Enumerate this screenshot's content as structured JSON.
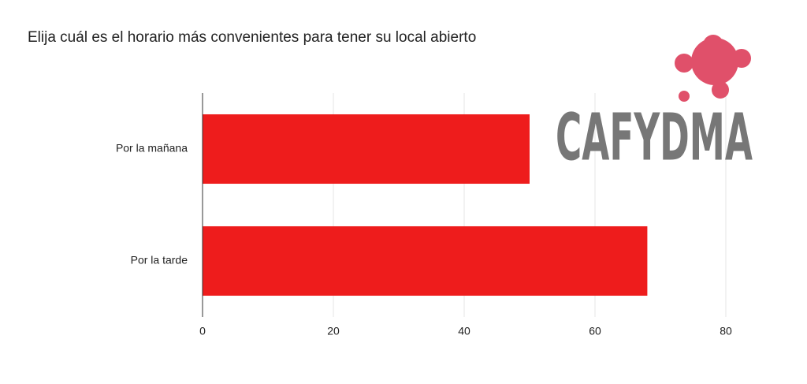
{
  "chart_data": {
    "type": "bar",
    "orientation": "horizontal",
    "title": "Elija cuál es el horario más convenientes para tener su local abierto",
    "categories": [
      "Por la mañana",
      "Por la tarde"
    ],
    "values": [
      50,
      68
    ],
    "color": "#ee1c1c",
    "xlim": [
      0,
      80
    ],
    "xticks": [
      0,
      20,
      40,
      60,
      80
    ],
    "grid": true
  },
  "logo": {
    "text": "CAFYDMA"
  }
}
